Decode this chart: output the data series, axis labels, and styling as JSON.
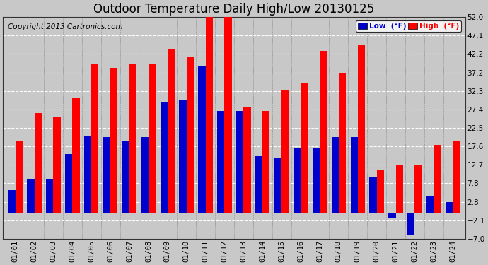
{
  "title": "Outdoor Temperature Daily High/Low 20130125",
  "copyright": "Copyright 2013 Cartronics.com",
  "legend_low": "Low  (°F)",
  "legend_high": "High  (°F)",
  "dates": [
    "01/01",
    "01/02",
    "01/03",
    "01/04",
    "01/05",
    "01/06",
    "01/07",
    "01/08",
    "01/09",
    "01/10",
    "01/11",
    "01/12",
    "01/13",
    "01/14",
    "01/15",
    "01/16",
    "01/17",
    "01/18",
    "01/19",
    "01/20",
    "01/21",
    "01/22",
    "01/23",
    "01/24"
  ],
  "highs": [
    19.0,
    26.5,
    25.5,
    30.5,
    39.5,
    38.5,
    39.5,
    39.5,
    43.5,
    41.5,
    52.0,
    52.0,
    28.0,
    27.0,
    32.5,
    34.5,
    43.0,
    37.0,
    44.5,
    11.5,
    12.7,
    12.7,
    18.0,
    19.0
  ],
  "lows": [
    6.0,
    9.0,
    9.0,
    15.5,
    20.5,
    20.0,
    19.0,
    20.0,
    29.5,
    30.0,
    39.0,
    27.0,
    27.0,
    15.0,
    14.5,
    17.0,
    17.0,
    20.0,
    20.0,
    9.5,
    -1.5,
    -6.0,
    4.5,
    2.8
  ],
  "bar_width": 0.38,
  "ylim": [
    -7.0,
    52.0
  ],
  "yticks": [
    -7.0,
    -2.1,
    2.8,
    7.8,
    12.7,
    17.6,
    22.5,
    27.4,
    32.3,
    37.2,
    42.2,
    47.1,
    52.0
  ],
  "color_high": "#ff0000",
  "color_low": "#0000cc",
  "bg_color": "#c8c8c8",
  "plot_bg": "#c8c8c8",
  "grid_color": "#ffffff",
  "title_fontsize": 12,
  "copyright_fontsize": 7.5,
  "tick_fontsize": 7.5
}
